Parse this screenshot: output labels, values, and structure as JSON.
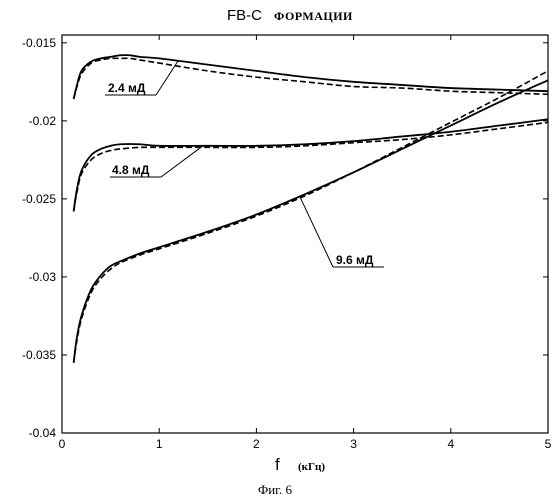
{
  "chart_data": {
    "type": "line",
    "title": "FB-C",
    "subtitle": "ФОРМАЦИИ",
    "xlabel": "f",
    "xlabel_unit": "(кГц)",
    "ylabel": "",
    "xlim": [
      0,
      5
    ],
    "ylim": [
      -0.04,
      -0.0145
    ],
    "xticks": [
      0,
      1,
      2,
      3,
      4,
      5
    ],
    "xtick_labels": [
      "0",
      "1",
      "2",
      "3",
      "4",
      "5"
    ],
    "yticks": [
      -0.04,
      -0.035,
      -0.03,
      -0.025,
      -0.02,
      -0.015
    ],
    "ytick_labels": [
      "-0.04",
      "-0.035",
      "-0.03",
      "-0.025",
      "-0.02",
      "-0.015"
    ],
    "grid": false,
    "legend": "none",
    "series": [
      {
        "name": "2.4 мД",
        "style": "solid",
        "x": [
          0.12,
          0.15,
          0.2,
          0.3,
          0.4,
          0.5,
          0.6,
          0.7,
          0.8,
          1.0,
          1.5,
          2.0,
          2.5,
          3.0,
          3.5,
          4.0,
          4.5,
          5.0
        ],
        "y": [
          -0.0186,
          -0.0178,
          -0.0168,
          -0.0162,
          -0.016,
          -0.0159,
          -0.0158,
          -0.0158,
          -0.0159,
          -0.016,
          -0.0164,
          -0.0168,
          -0.0172,
          -0.0175,
          -0.0177,
          -0.0179,
          -0.018,
          -0.0181
        ]
      },
      {
        "name": "2.4 мД",
        "style": "dashed",
        "x": [
          0.12,
          0.15,
          0.2,
          0.3,
          0.4,
          0.5,
          0.6,
          0.7,
          0.8,
          1.0,
          1.5,
          2.0,
          2.5,
          3.0,
          3.5,
          4.0,
          4.5,
          5.0
        ],
        "y": [
          -0.0186,
          -0.0179,
          -0.017,
          -0.0163,
          -0.0161,
          -0.016,
          -0.016,
          -0.016,
          -0.0161,
          -0.0163,
          -0.0168,
          -0.0172,
          -0.0175,
          -0.0178,
          -0.0179,
          -0.0181,
          -0.0182,
          -0.0183
        ]
      },
      {
        "name": "4.8 мД",
        "style": "solid",
        "x": [
          0.12,
          0.15,
          0.2,
          0.3,
          0.4,
          0.5,
          0.6,
          0.8,
          1.0,
          1.5,
          2.0,
          2.5,
          3.0,
          3.5,
          4.0,
          4.5,
          5.0
        ],
        "y": [
          -0.0258,
          -0.0245,
          -0.0232,
          -0.0222,
          -0.0218,
          -0.0216,
          -0.0215,
          -0.0215,
          -0.0216,
          -0.0216,
          -0.0216,
          -0.0215,
          -0.0213,
          -0.021,
          -0.0207,
          -0.0203,
          -0.0199
        ]
      },
      {
        "name": "4.8 мД",
        "style": "dashed",
        "x": [
          0.12,
          0.15,
          0.2,
          0.3,
          0.4,
          0.5,
          0.6,
          0.8,
          1.0,
          1.5,
          2.0,
          2.5,
          3.0,
          3.5,
          4.0,
          4.5,
          5.0
        ],
        "y": [
          -0.0258,
          -0.0247,
          -0.0234,
          -0.0225,
          -0.0221,
          -0.0219,
          -0.0218,
          -0.0217,
          -0.0217,
          -0.0217,
          -0.0217,
          -0.0216,
          -0.0214,
          -0.0212,
          -0.0209,
          -0.0205,
          -0.0201
        ]
      },
      {
        "name": "9.6 мД",
        "style": "solid",
        "x": [
          0.12,
          0.15,
          0.2,
          0.3,
          0.4,
          0.5,
          0.6,
          0.8,
          1.0,
          1.5,
          2.0,
          2.5,
          3.0,
          3.5,
          4.0,
          4.5,
          5.0
        ],
        "y": [
          -0.0355,
          -0.034,
          -0.0325,
          -0.0308,
          -0.0299,
          -0.0293,
          -0.029,
          -0.0285,
          -0.0281,
          -0.0271,
          -0.026,
          -0.0247,
          -0.0233,
          -0.0218,
          -0.0203,
          -0.0188,
          -0.0174
        ]
      },
      {
        "name": "9.6 мД",
        "style": "dashed",
        "x": [
          0.12,
          0.15,
          0.2,
          0.3,
          0.4,
          0.5,
          0.6,
          0.8,
          1.0,
          1.5,
          2.0,
          2.5,
          3.0,
          3.5,
          4.0,
          4.5,
          5.0
        ],
        "y": [
          -0.0355,
          -0.0342,
          -0.0327,
          -0.031,
          -0.0301,
          -0.0295,
          -0.0291,
          -0.0286,
          -0.0282,
          -0.0272,
          -0.0261,
          -0.0248,
          -0.0233,
          -0.0217,
          -0.0201,
          -0.0185,
          -0.0168
        ]
      }
    ],
    "annotations": [
      {
        "text": "2.4 мД",
        "target_x": 1.2,
        "target_y": -0.0161
      },
      {
        "text": "4.8 мД",
        "target_x": 1.45,
        "target_y": -0.0216
      },
      {
        "text": "9.6 мД",
        "target_x": 2.45,
        "target_y": -0.0249
      }
    ],
    "caption": "Фиг. 6"
  }
}
